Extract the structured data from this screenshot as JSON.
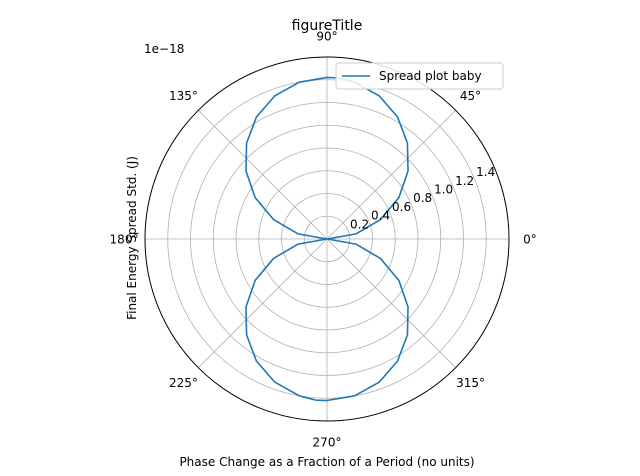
{
  "chart_data": {
    "type": "line",
    "projection": "polar",
    "title": "figureTitle",
    "xlabel": "Phase Change as a Fraction of a Period (no units)",
    "ylabel": "Final Energy Spread Std. (J)",
    "offset_label": "1e−18",
    "angle_ticks": [
      {
        "deg": 0,
        "label": "0°"
      },
      {
        "deg": 45,
        "label": "45°"
      },
      {
        "deg": 90,
        "label": "90°"
      },
      {
        "deg": 135,
        "label": "135°"
      },
      {
        "deg": 180,
        "label": "180°"
      },
      {
        "deg": 225,
        "label": "225°"
      },
      {
        "deg": 270,
        "label": "270°"
      },
      {
        "deg": 315,
        "label": "315°"
      }
    ],
    "radial_ticks": [
      {
        "value": 0.2,
        "label": "0.2"
      },
      {
        "value": 0.4,
        "label": "0.4"
      },
      {
        "value": 0.6,
        "label": "0.6"
      },
      {
        "value": 0.8,
        "label": "0.8"
      },
      {
        "value": 1.0,
        "label": "1.0"
      },
      {
        "value": 1.2,
        "label": "1.2"
      },
      {
        "value": 1.4,
        "label": "1.4"
      }
    ],
    "r_range": [
      0,
      1.6
    ],
    "grid": true,
    "legend_position": "top-right",
    "series": [
      {
        "name": "Spread plot baby",
        "color": "#1f77b4",
        "points": [
          {
            "theta_deg": 0,
            "r": 0.0
          },
          {
            "theta_deg": 10,
            "r": 0.26
          },
          {
            "theta_deg": 20,
            "r": 0.5
          },
          {
            "theta_deg": 30,
            "r": 0.73
          },
          {
            "theta_deg": 40,
            "r": 0.93
          },
          {
            "theta_deg": 50,
            "r": 1.1
          },
          {
            "theta_deg": 60,
            "r": 1.24
          },
          {
            "theta_deg": 70,
            "r": 1.34
          },
          {
            "theta_deg": 80,
            "r": 1.4
          },
          {
            "theta_deg": 86,
            "r": 1.42
          },
          {
            "theta_deg": 90,
            "r": 1.42
          },
          {
            "theta_deg": 100,
            "r": 1.4
          },
          {
            "theta_deg": 110,
            "r": 1.34
          },
          {
            "theta_deg": 120,
            "r": 1.24
          },
          {
            "theta_deg": 130,
            "r": 1.1
          },
          {
            "theta_deg": 140,
            "r": 0.93
          },
          {
            "theta_deg": 150,
            "r": 0.73
          },
          {
            "theta_deg": 160,
            "r": 0.5
          },
          {
            "theta_deg": 170,
            "r": 0.26
          },
          {
            "theta_deg": 180,
            "r": 0.0
          },
          {
            "theta_deg": 190,
            "r": 0.26
          },
          {
            "theta_deg": 200,
            "r": 0.5
          },
          {
            "theta_deg": 210,
            "r": 0.73
          },
          {
            "theta_deg": 220,
            "r": 0.93
          },
          {
            "theta_deg": 230,
            "r": 1.1
          },
          {
            "theta_deg": 240,
            "r": 1.24
          },
          {
            "theta_deg": 250,
            "r": 1.34
          },
          {
            "theta_deg": 260,
            "r": 1.4
          },
          {
            "theta_deg": 266,
            "r": 1.42
          },
          {
            "theta_deg": 270,
            "r": 1.42
          },
          {
            "theta_deg": 280,
            "r": 1.4
          },
          {
            "theta_deg": 290,
            "r": 1.34
          },
          {
            "theta_deg": 300,
            "r": 1.24
          },
          {
            "theta_deg": 310,
            "r": 1.1
          },
          {
            "theta_deg": 320,
            "r": 0.93
          },
          {
            "theta_deg": 330,
            "r": 0.73
          },
          {
            "theta_deg": 340,
            "r": 0.5
          },
          {
            "theta_deg": 350,
            "r": 0.26
          },
          {
            "theta_deg": 360,
            "r": 0.0
          }
        ]
      }
    ]
  }
}
